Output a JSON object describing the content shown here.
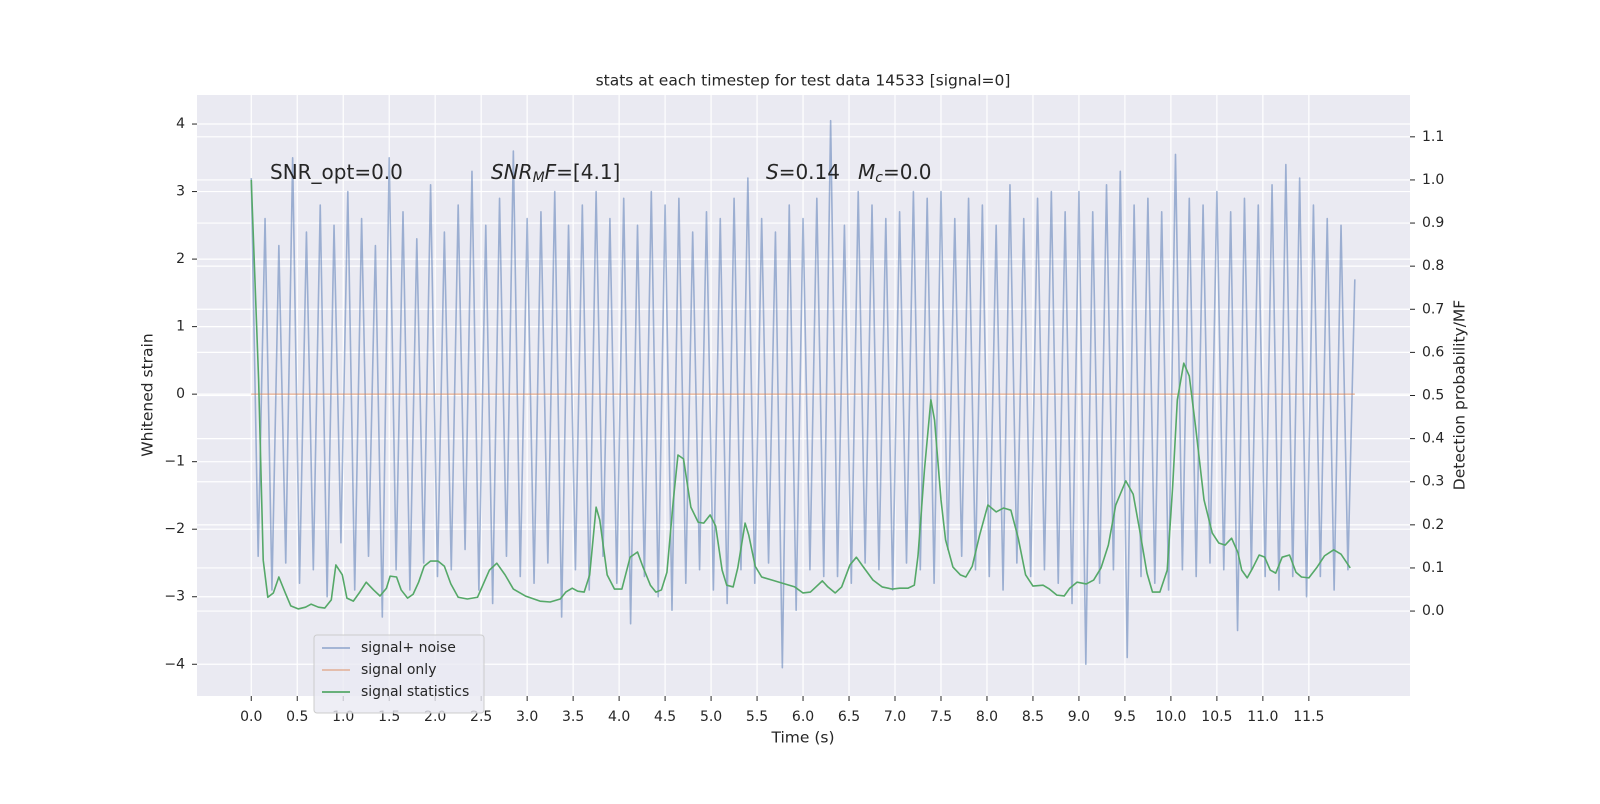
{
  "chart_data": {
    "type": "line",
    "title": "stats at each timestep for test data 14533 [signal=0]",
    "xlabel": "Time (s)",
    "ylabel": "Whitened strain",
    "y2label": "Detection probability/MF",
    "xlim": [
      -0.59,
      12.6
    ],
    "ylim": [
      -4.47,
      4.43
    ],
    "y2lim": [
      -0.197,
      1.197
    ],
    "grid": true,
    "legend": "lower left",
    "xticks": [
      {
        "value": 0,
        "label": "0.0"
      },
      0.5,
      {
        "value": 1,
        "label": "1.0"
      },
      1.5,
      {
        "value": 2,
        "label": "2.0"
      },
      2.5,
      {
        "value": 3,
        "label": "3.0"
      },
      3.5,
      {
        "value": 4,
        "label": "4.0"
      },
      4.5,
      {
        "value": 5,
        "label": "5.0"
      },
      5.5,
      {
        "value": 6,
        "label": "6.0"
      },
      6.5,
      {
        "value": 7,
        "label": "7.0"
      },
      7.5,
      {
        "value": 8,
        "label": "8.0"
      },
      8.5,
      {
        "value": 9,
        "label": "9.0"
      },
      9.5,
      {
        "value": 10,
        "label": "10.0"
      },
      10.5,
      {
        "value": 11,
        "label": "11.0"
      },
      11.5
    ],
    "yticks": [
      {
        "value": -4,
        "label": "−4"
      },
      {
        "value": -3,
        "label": "−3"
      },
      {
        "value": -2,
        "label": "−2"
      },
      {
        "value": -1,
        "label": "−1"
      },
      0,
      1,
      2,
      3,
      4
    ],
    "y2ticks": [
      {
        "value": 0,
        "label": "0.0"
      },
      0.1,
      0.2,
      0.3,
      0.4,
      0.5,
      0.6,
      0.7,
      0.8,
      0.9,
      {
        "value": 1,
        "label": "1.0"
      },
      1.1
    ],
    "annotations": [
      {
        "segments": [
          {
            "text": "SNR_opt=0.0",
            "style": "normal"
          }
        ]
      },
      {
        "segments": [
          {
            "text": "SNR",
            "style": "italic"
          },
          {
            "text": "M",
            "style": "sub"
          },
          {
            "text": "F",
            "style": "italic"
          },
          {
            "text": "=[4.1]",
            "style": "normal"
          }
        ]
      },
      {
        "segments": [
          {
            "text": "S",
            "style": "italic"
          },
          {
            "text": "=0.14",
            "style": "normal"
          }
        ]
      },
      {
        "segments": [
          {
            "text": "M",
            "style": "italic"
          },
          {
            "text": "c",
            "style": "sub"
          },
          {
            "text": "=0.0",
            "style": "normal"
          }
        ]
      }
    ],
    "series": [
      {
        "name": "signal+ noise",
        "color": "#4c72b0",
        "opacity": 0.5,
        "axis": "y",
        "x": [
          0,
          0.075,
          0.15,
          0.225,
          0.3,
          0.375,
          0.45,
          0.525,
          0.6,
          0.675,
          0.75,
          0.825,
          0.9,
          0.975,
          1.05,
          1.125,
          1.2,
          1.275,
          1.35,
          1.425,
          1.5,
          1.575,
          1.65,
          1.725,
          1.8,
          1.875,
          1.95,
          2.025,
          2.1,
          2.175,
          2.25,
          2.325,
          2.4,
          2.475,
          2.55,
          2.625,
          2.7,
          2.775,
          2.85,
          2.925,
          3,
          3.075,
          3.15,
          3.225,
          3.3,
          3.375,
          3.45,
          3.525,
          3.6,
          3.675,
          3.75,
          3.825,
          3.9,
          3.975,
          4.05,
          4.125,
          4.2,
          4.275,
          4.35,
          4.425,
          4.5,
          4.575,
          4.65,
          4.725,
          4.8,
          4.875,
          4.95,
          5.025,
          5.1,
          5.175,
          5.25,
          5.325,
          5.4,
          5.475,
          5.55,
          5.625,
          5.7,
          5.775,
          5.85,
          5.925,
          6,
          6.075,
          6.15,
          6.225,
          6.3,
          6.375,
          6.45,
          6.525,
          6.6,
          6.675,
          6.75,
          6.825,
          6.9,
          6.975,
          7.05,
          7.125,
          7.2,
          7.275,
          7.35,
          7.425,
          7.5,
          7.575,
          7.65,
          7.725,
          7.8,
          7.875,
          7.95,
          8.025,
          8.1,
          8.175,
          8.25,
          8.325,
          8.4,
          8.475,
          8.55,
          8.625,
          8.7,
          8.775,
          8.85,
          8.925,
          9,
          9.075,
          9.15,
          9.225,
          9.3,
          9.375,
          9.45,
          9.525,
          9.6,
          9.675,
          9.75,
          9.825,
          9.9,
          9.975,
          10.05,
          10.125,
          10.2,
          10.275,
          10.35,
          10.425,
          10.5,
          10.575,
          10.65,
          10.725,
          10.8,
          10.875,
          10.95,
          11.025,
          11.1,
          11.175,
          11.25,
          11.325,
          11.4,
          11.475,
          11.55,
          11.625,
          11.7,
          11.775,
          11.85,
          11.925,
          12
        ],
        "values": [
          3.2,
          -2.4,
          2.6,
          -2.9,
          2.2,
          -2.5,
          3.5,
          -2.8,
          2.4,
          -2.6,
          2.8,
          -3.0,
          2.5,
          -2.2,
          3.0,
          -2.9,
          2.6,
          -2.4,
          2.2,
          -3.3,
          3.5,
          -2.6,
          2.7,
          -2.9,
          2.3,
          -2.5,
          3.1,
          -2.7,
          2.4,
          -2.6,
          2.8,
          -2.3,
          3.3,
          -2.9,
          2.5,
          -3.1,
          2.9,
          -2.4,
          3.6,
          -2.7,
          2.6,
          -2.8,
          2.7,
          -2.5,
          3.0,
          -3.3,
          2.5,
          -2.6,
          2.8,
          -2.9,
          3.0,
          -2.4,
          2.6,
          -2.8,
          2.9,
          -3.4,
          2.5,
          -2.7,
          3.0,
          -3.0,
          2.8,
          -3.2,
          2.9,
          -2.8,
          2.4,
          -2.6,
          2.7,
          -2.9,
          2.6,
          -3.1,
          2.9,
          -2.6,
          3.2,
          -2.8,
          2.6,
          -2.5,
          2.4,
          -4.05,
          2.8,
          -3.2,
          2.6,
          -2.6,
          2.9,
          -2.7,
          4.05,
          -2.7,
          2.5,
          -2.8,
          3.0,
          -2.5,
          2.8,
          -2.6,
          2.6,
          -2.9,
          2.7,
          -2.5,
          3.0,
          -2.6,
          2.9,
          -2.8,
          3.0,
          -2.3,
          2.6,
          -2.4,
          2.9,
          -2.6,
          2.8,
          -2.7,
          2.5,
          -2.9,
          3.1,
          -2.5,
          2.6,
          -2.7,
          2.9,
          -2.6,
          3.0,
          -2.8,
          2.7,
          -3.1,
          3.0,
          -4.0,
          2.7,
          -2.8,
          3.1,
          -2.6,
          3.3,
          -3.9,
          2.8,
          -2.7,
          2.9,
          -2.8,
          2.7,
          -2.9,
          3.55,
          -2.6,
          2.9,
          -2.7,
          2.8,
          -2.5,
          3.0,
          -2.6,
          2.7,
          -3.5,
          2.9,
          -2.6,
          2.8,
          -2.7,
          3.1,
          -2.9,
          3.4,
          -2.7,
          3.2,
          -3.0,
          2.8,
          -2.7,
          2.6,
          -2.9,
          2.5,
          -2.6,
          1.7
        ]
      },
      {
        "name": "signal only",
        "color": "#dd8452",
        "opacity": 0.5,
        "axis": "y",
        "x": [
          0,
          12
        ],
        "values": [
          0,
          0
        ]
      },
      {
        "name": "signal statistics",
        "color": "#55a868",
        "opacity": 1,
        "axis": "y2",
        "x": [
          0.0,
          0.08,
          0.13,
          0.18,
          0.24,
          0.3,
          0.37,
          0.43,
          0.51,
          0.59,
          0.65,
          0.73,
          0.8,
          0.87,
          0.92,
          0.99,
          1.04,
          1.11,
          1.18,
          1.25,
          1.33,
          1.4,
          1.47,
          1.51,
          1.58,
          1.63,
          1.7,
          1.76,
          1.82,
          1.88,
          1.95,
          2.03,
          2.1,
          2.17,
          2.25,
          2.35,
          2.46,
          2.59,
          2.67,
          2.76,
          2.85,
          2.98,
          3.14,
          3.25,
          3.36,
          3.42,
          3.49,
          3.55,
          3.62,
          3.68,
          3.75,
          3.79,
          3.87,
          3.95,
          4.03,
          4.12,
          4.2,
          4.26,
          4.34,
          4.4,
          4.46,
          4.52,
          4.59,
          4.64,
          4.7,
          4.78,
          4.86,
          4.92,
          4.99,
          5.05,
          5.12,
          5.17,
          5.24,
          5.29,
          5.37,
          5.41,
          5.48,
          5.55,
          5.66,
          5.8,
          5.91,
          6.0,
          6.08,
          6.14,
          6.21,
          6.27,
          6.35,
          6.42,
          6.51,
          6.58,
          6.65,
          6.76,
          6.86,
          6.97,
          7.05,
          7.14,
          7.21,
          7.25,
          7.32,
          7.39,
          7.43,
          7.5,
          7.55,
          7.63,
          7.71,
          7.77,
          7.84,
          7.92,
          8.01,
          8.1,
          8.18,
          8.26,
          8.34,
          8.42,
          8.5,
          8.61,
          8.68,
          8.76,
          8.84,
          8.9,
          8.98,
          9.08,
          9.16,
          9.24,
          9.32,
          9.4,
          9.51,
          9.59,
          9.66,
          9.74,
          9.8,
          9.88,
          9.96,
          10.02,
          10.07,
          10.14,
          10.2,
          10.27,
          10.36,
          10.45,
          10.52,
          10.59,
          10.66,
          10.73,
          10.77,
          10.83,
          10.89,
          10.96,
          11.02,
          11.08,
          11.14,
          11.21,
          11.29,
          11.36,
          11.42,
          11.5,
          11.59,
          11.67,
          11.77,
          11.85,
          11.95
        ],
        "values": [
          1.0,
          0.536,
          0.118,
          0.032,
          0.042,
          0.079,
          0.042,
          0.012,
          0.005,
          0.009,
          0.016,
          0.009,
          0.007,
          0.026,
          0.107,
          0.084,
          0.03,
          0.023,
          0.044,
          0.067,
          0.049,
          0.035,
          0.053,
          0.081,
          0.079,
          0.049,
          0.03,
          0.039,
          0.067,
          0.104,
          0.116,
          0.116,
          0.104,
          0.063,
          0.032,
          0.028,
          0.032,
          0.095,
          0.111,
          0.084,
          0.051,
          0.035,
          0.023,
          0.021,
          0.028,
          0.044,
          0.053,
          0.046,
          0.044,
          0.084,
          0.241,
          0.211,
          0.084,
          0.051,
          0.051,
          0.125,
          0.137,
          0.102,
          0.06,
          0.044,
          0.049,
          0.09,
          0.258,
          0.362,
          0.353,
          0.241,
          0.206,
          0.204,
          0.223,
          0.197,
          0.095,
          0.06,
          0.056,
          0.1,
          0.204,
          0.176,
          0.104,
          0.079,
          0.072,
          0.063,
          0.056,
          0.042,
          0.044,
          0.056,
          0.07,
          0.056,
          0.042,
          0.056,
          0.107,
          0.125,
          0.104,
          0.072,
          0.056,
          0.051,
          0.053,
          0.053,
          0.06,
          0.128,
          0.327,
          0.49,
          0.443,
          0.258,
          0.165,
          0.102,
          0.084,
          0.079,
          0.104,
          0.176,
          0.246,
          0.23,
          0.239,
          0.234,
          0.169,
          0.084,
          0.058,
          0.06,
          0.051,
          0.037,
          0.035,
          0.053,
          0.067,
          0.063,
          0.072,
          0.1,
          0.153,
          0.246,
          0.302,
          0.271,
          0.188,
          0.088,
          0.044,
          0.044,
          0.095,
          0.292,
          0.49,
          0.575,
          0.545,
          0.425,
          0.258,
          0.181,
          0.158,
          0.153,
          0.169,
          0.135,
          0.095,
          0.077,
          0.1,
          0.13,
          0.125,
          0.095,
          0.088,
          0.125,
          0.13,
          0.09,
          0.079,
          0.077,
          0.102,
          0.128,
          0.142,
          0.132,
          0.1
        ]
      }
    ]
  }
}
